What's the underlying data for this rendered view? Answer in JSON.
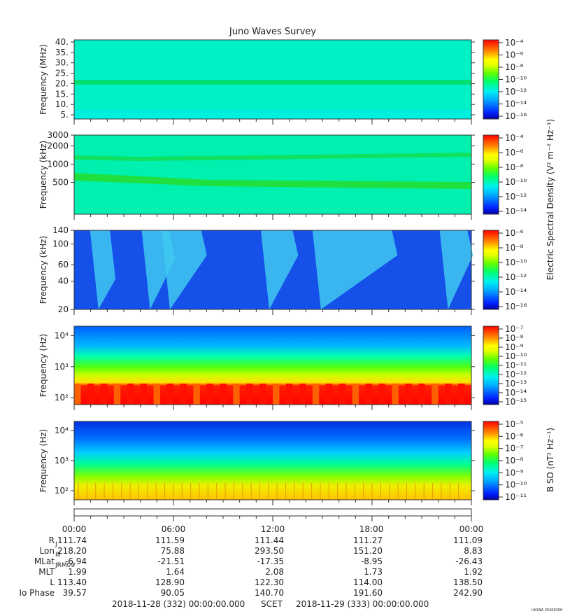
{
  "title": "Juno Waves Survey",
  "panels": [
    {
      "ylabel": "Frequency (MHz)",
      "scale": "linear",
      "ylim": [
        3,
        41
      ],
      "ticks": [
        {
          "v": 40,
          "t": "40."
        },
        {
          "v": 35,
          "t": "35."
        },
        {
          "v": 30,
          "t": "30."
        },
        {
          "v": 25,
          "t": "25."
        },
        {
          "v": 20,
          "t": "20."
        },
        {
          "v": 15,
          "t": "15."
        },
        {
          "v": 10,
          "t": "10."
        },
        {
          "v": 5,
          "t": "5."
        }
      ]
    },
    {
      "ylabel": "Frequency (kHz)",
      "scale": "log",
      "ylim": [
        150,
        3000
      ],
      "ticks": [
        {
          "v": 3000,
          "t": "3000"
        },
        {
          "v": 2000,
          "t": "2000"
        },
        {
          "v": 1000,
          "t": "1000"
        },
        {
          "v": 500,
          "t": "500"
        }
      ]
    },
    {
      "ylabel": "Frequency (kHz)",
      "scale": "log",
      "ylim": [
        20,
        140
      ],
      "ticks": [
        {
          "v": 140,
          "t": "140"
        },
        {
          "v": 100,
          "t": "100"
        },
        {
          "v": 60,
          "t": "60"
        },
        {
          "v": 40,
          "t": "40"
        },
        {
          "v": 20,
          "t": "20"
        }
      ]
    },
    {
      "ylabel": "Frequency (Hz)",
      "scale": "log",
      "ylim": [
        60,
        20000
      ],
      "ticks": [
        {
          "v": 10000,
          "t": "10⁴"
        },
        {
          "v": 1000,
          "t": "10³"
        },
        {
          "v": 100,
          "t": "10²"
        }
      ]
    },
    {
      "ylabel": "Frequency (Hz)",
      "scale": "log",
      "ylim": [
        50,
        20000
      ],
      "ticks": [
        {
          "v": 10000,
          "t": "10⁴"
        },
        {
          "v": 1000,
          "t": "10³"
        },
        {
          "v": 100,
          "t": "10²"
        }
      ]
    }
  ],
  "colorbars": [
    {
      "labels": [
        "10⁻⁴",
        "10⁻⁶",
        "10⁻⁸",
        "10⁻¹⁰",
        "10⁻¹²",
        "10⁻¹⁴",
        "10⁻¹⁶"
      ]
    },
    {
      "labels": [
        "10⁻⁴",
        "10⁻⁶",
        "10⁻⁸",
        "10⁻¹⁰",
        "10⁻¹²",
        "10⁻¹⁴"
      ]
    },
    {
      "labels": [
        "10⁻⁶",
        "10⁻⁸",
        "10⁻¹⁰",
        "10⁻¹²",
        "10⁻¹⁴",
        "10⁻¹⁶"
      ]
    },
    {
      "labels": [
        "10⁻⁷",
        "10⁻⁸",
        "10⁻⁹",
        "10⁻¹⁰",
        "10⁻¹¹",
        "10⁻¹²",
        "10⁻¹³",
        "10⁻¹⁴",
        "10⁻¹⁵"
      ]
    },
    {
      "labels": [
        "10⁻⁵",
        "10⁻⁶",
        "10⁻⁷",
        "10⁻⁸",
        "10⁻⁹",
        "10⁻¹⁰",
        "10⁻¹¹"
      ]
    }
  ],
  "colorbar_titles": {
    "electric": "Electric Spectral Density (V² m⁻² Hz⁻¹)",
    "magnetic": "B SD (nT² Hz⁻¹)"
  },
  "ephemeris": {
    "times": [
      "00:00",
      "06:00",
      "12:00",
      "18:00",
      "00:00"
    ],
    "rows": [
      {
        "label": "R",
        "sub": "J",
        "values": [
          "111.74",
          "111.59",
          "111.44",
          "111.27",
          "111.09"
        ]
      },
      {
        "label": "Lon",
        "sub": "III",
        "values": [
          "218.20",
          "75.88",
          "293.50",
          "151.20",
          "8.83"
        ]
      },
      {
        "label": "MLat",
        "sub": "JRM09",
        "values": [
          "-6.94",
          "-21.51",
          "-17.35",
          "-8.95",
          "-26.43"
        ]
      },
      {
        "label": "MLT",
        "sub": "",
        "values": [
          "1.99",
          "1.64",
          "2.08",
          "1.73",
          "1.92"
        ]
      },
      {
        "label": "L",
        "sub": "",
        "values": [
          "113.40",
          "128.90",
          "122.30",
          "114.00",
          "138.50"
        ]
      },
      {
        "label": "Io Phase",
        "sub": "",
        "values": [
          "39.57",
          "90.05",
          "140.70",
          "191.60",
          "242.90"
        ]
      }
    ],
    "start": "2018-11-28 (332) 00:00:00.000",
    "scet": "SCET",
    "end": "2018-11-29 (333) 00:00:00.000"
  },
  "stamp": "UIOWA 20200306",
  "colors": {
    "colormap": [
      "#0000a0",
      "#0030ff",
      "#00a8ff",
      "#00f0f0",
      "#00ff80",
      "#40ff00",
      "#c0ff00",
      "#ffff00",
      "#ffa000",
      "#ff4000",
      "#ff0000"
    ]
  },
  "chart_data": {
    "type": "heatmap",
    "title": "Juno Waves Survey",
    "x_time_ticks": [
      "00:00",
      "06:00",
      "12:00",
      "18:00",
      "00:00"
    ],
    "panels": [
      {
        "ylabel": "Frequency (MHz)",
        "ylim": [
          3,
          41
        ],
        "scale": "linear",
        "colorbar_range": [
          "10⁻¹⁶",
          "10⁻⁴"
        ],
        "features": [
          {
            "type": "band",
            "freq": 21,
            "level": "10⁻¹²"
          }
        ],
        "background": "10⁻¹³"
      },
      {
        "ylabel": "Frequency (kHz)",
        "ylim": [
          150,
          3000
        ],
        "scale": "log",
        "colorbar_range": [
          "10⁻¹⁴",
          "10⁻⁴"
        ],
        "features": [
          {
            "type": "band",
            "freq_start": 1300,
            "freq_end": 1550,
            "level": "10⁻¹¹"
          },
          {
            "type": "band",
            "freq_start": 640,
            "freq_end": 420,
            "level": "10⁻¹¹"
          }
        ],
        "background": "10⁻¹²"
      },
      {
        "ylabel": "Frequency (kHz)",
        "ylim": [
          20,
          140
        ],
        "scale": "log",
        "colorbar_range": [
          "10⁻¹⁶",
          "10⁻⁶"
        ],
        "features": [
          {
            "type": "bursts",
            "hours": [
              1.2,
              3.6,
              5.3,
              11.6,
              14.3,
              15.8,
              22.2
            ],
            "level": "10⁻¹³"
          }
        ],
        "background": "10⁻¹⁵"
      },
      {
        "ylabel": "Frequency (Hz)",
        "ylim": [
          60,
          20000
        ],
        "scale": "log",
        "colorbar_range": [
          "10⁻¹⁵",
          "10⁻⁷"
        ],
        "features": [
          {
            "type": "band",
            "freq_low": 60,
            "freq_high": 250,
            "level": "10⁻⁷"
          }
        ],
        "background": "10⁻¹³"
      },
      {
        "ylabel": "Frequency (Hz)",
        "ylim": [
          50,
          20000
        ],
        "scale": "log",
        "colorbar_range": [
          "10⁻¹¹",
          "10⁻⁵"
        ],
        "features": [
          {
            "type": "band",
            "freq_low": 50,
            "freq_high": 180,
            "level": "10⁻⁶"
          }
        ],
        "background": "10⁻¹⁰"
      }
    ]
  }
}
